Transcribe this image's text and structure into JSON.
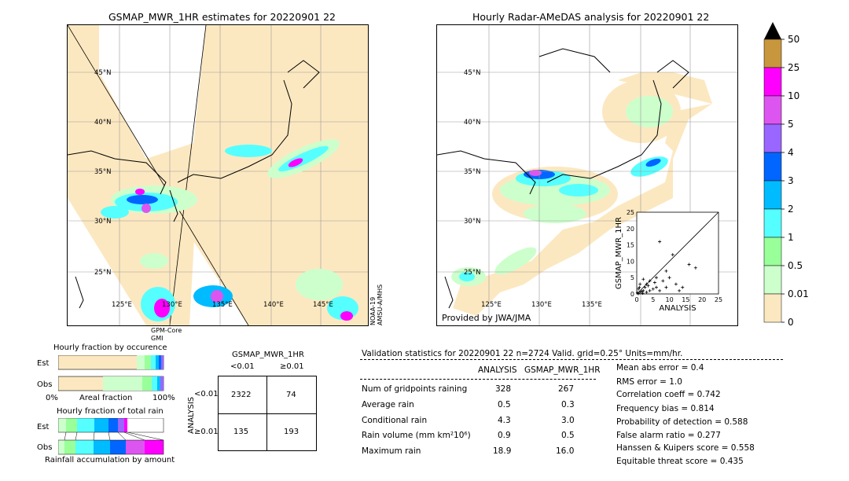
{
  "left_map": {
    "title": "GSMAP_MWR_1HR estimates for 20220901 22",
    "lat_labels": [
      "45°N",
      "40°N",
      "35°N",
      "30°N",
      "25°N"
    ],
    "lon_labels": [
      "125°E",
      "130°E",
      "135°E",
      "140°E",
      "145°E"
    ],
    "swath_label_1": "GPM-Core",
    "swath_label_2": "GMI",
    "side_label_1": "NOAA-19",
    "side_label_2": "AMSU-A/MHS"
  },
  "right_map": {
    "title": "Hourly Radar-AMeDAS analysis for 20220901 22",
    "lat_labels": [
      "45°N",
      "40°N",
      "35°N",
      "30°N",
      "25°N"
    ],
    "lon_labels": [
      "125°E",
      "130°E",
      "135°E"
    ],
    "provider": "Provided by JWA/JMA"
  },
  "colorbar": {
    "labels": [
      "50",
      "25",
      "10",
      "5",
      "4",
      "3",
      "2",
      "1",
      "0.5",
      "0.01",
      "0"
    ],
    "colors": [
      "#c8963c",
      "#ff00ff",
      "#dd55f0",
      "#9966ff",
      "#0066ff",
      "#00bbff",
      "#55ffff",
      "#99ff99",
      "#ccffcc",
      "#fce8c0"
    ],
    "extend_color": "#000000"
  },
  "scatter": {
    "xlabel": "ANALYSIS",
    "ylabel": "GSMAP_MWR_1HR",
    "ticks": [
      "0",
      "5",
      "10",
      "15",
      "20",
      "25"
    ],
    "points": [
      [
        0.2,
        0.3
      ],
      [
        0.5,
        0.1
      ],
      [
        1,
        0.5
      ],
      [
        1.5,
        0.8
      ],
      [
        2,
        1
      ],
      [
        0.8,
        2
      ],
      [
        3,
        0.5
      ],
      [
        2.5,
        2
      ],
      [
        1,
        3
      ],
      [
        4,
        1
      ],
      [
        3.5,
        2.5
      ],
      [
        5,
        1.5
      ],
      [
        6,
        2
      ],
      [
        5.5,
        3.5
      ],
      [
        7,
        1
      ],
      [
        8,
        4
      ],
      [
        9,
        2
      ],
      [
        10,
        5
      ],
      [
        12,
        3
      ],
      [
        14,
        2
      ],
      [
        16,
        9
      ],
      [
        18,
        8
      ],
      [
        7,
        16
      ],
      [
        11,
        12
      ],
      [
        13,
        1
      ],
      [
        6,
        5
      ],
      [
        4,
        4
      ],
      [
        2,
        4.5
      ],
      [
        0.5,
        1.5
      ],
      [
        1.8,
        0.2
      ],
      [
        3,
        3
      ],
      [
        9,
        7
      ]
    ]
  },
  "occurrence": {
    "title": "Hourly fraction by occurence",
    "row1": "Est",
    "row2": "Obs",
    "axis_left": "0%",
    "axis_mid": "Areal fraction",
    "axis_right": "100%"
  },
  "total_rain": {
    "title": "Hourly fraction of total rain",
    "row1": "Est",
    "row2": "Obs",
    "axis_label": "Rainfall accumulation by amount"
  },
  "contingency": {
    "title": "GSMAP_MWR_1HR",
    "col1": "<0.01",
    "col2": "≥0.01",
    "row_axis": "ANALYSIS",
    "row1": "<0.01",
    "row2": "≥0.01",
    "cells": [
      "2322",
      "74",
      "135",
      "193"
    ]
  },
  "validation": {
    "header": "Validation statistics for 20220901 22  n=2724 Valid. grid=0.25° Units=mm/hr.",
    "col_analysis": "ANALYSIS",
    "col_gsmap": "GSMAP_MWR_1HR",
    "rows": [
      {
        "label": "Num of gridpoints raining",
        "analysis": "328",
        "gsmap": "267"
      },
      {
        "label": "Average rain",
        "analysis": "0.5",
        "gsmap": "0.3"
      },
      {
        "label": "Conditional rain",
        "analysis": "4.3",
        "gsmap": "3.0"
      },
      {
        "label": "Rain volume (mm km²10⁶)",
        "analysis": "0.9",
        "gsmap": "0.5"
      },
      {
        "label": "Maximum rain",
        "analysis": "18.9",
        "gsmap": "16.0"
      }
    ],
    "scores": [
      "Mean abs error =    0.4",
      "RMS error =    1.0",
      "Correlation coeff =  0.742",
      "Frequency bias =  0.814",
      "Probability of detection =  0.588",
      "False alarm ratio =  0.277",
      "Hanssen & Kuipers score =  0.558",
      "Equitable threat score =  0.435"
    ]
  }
}
